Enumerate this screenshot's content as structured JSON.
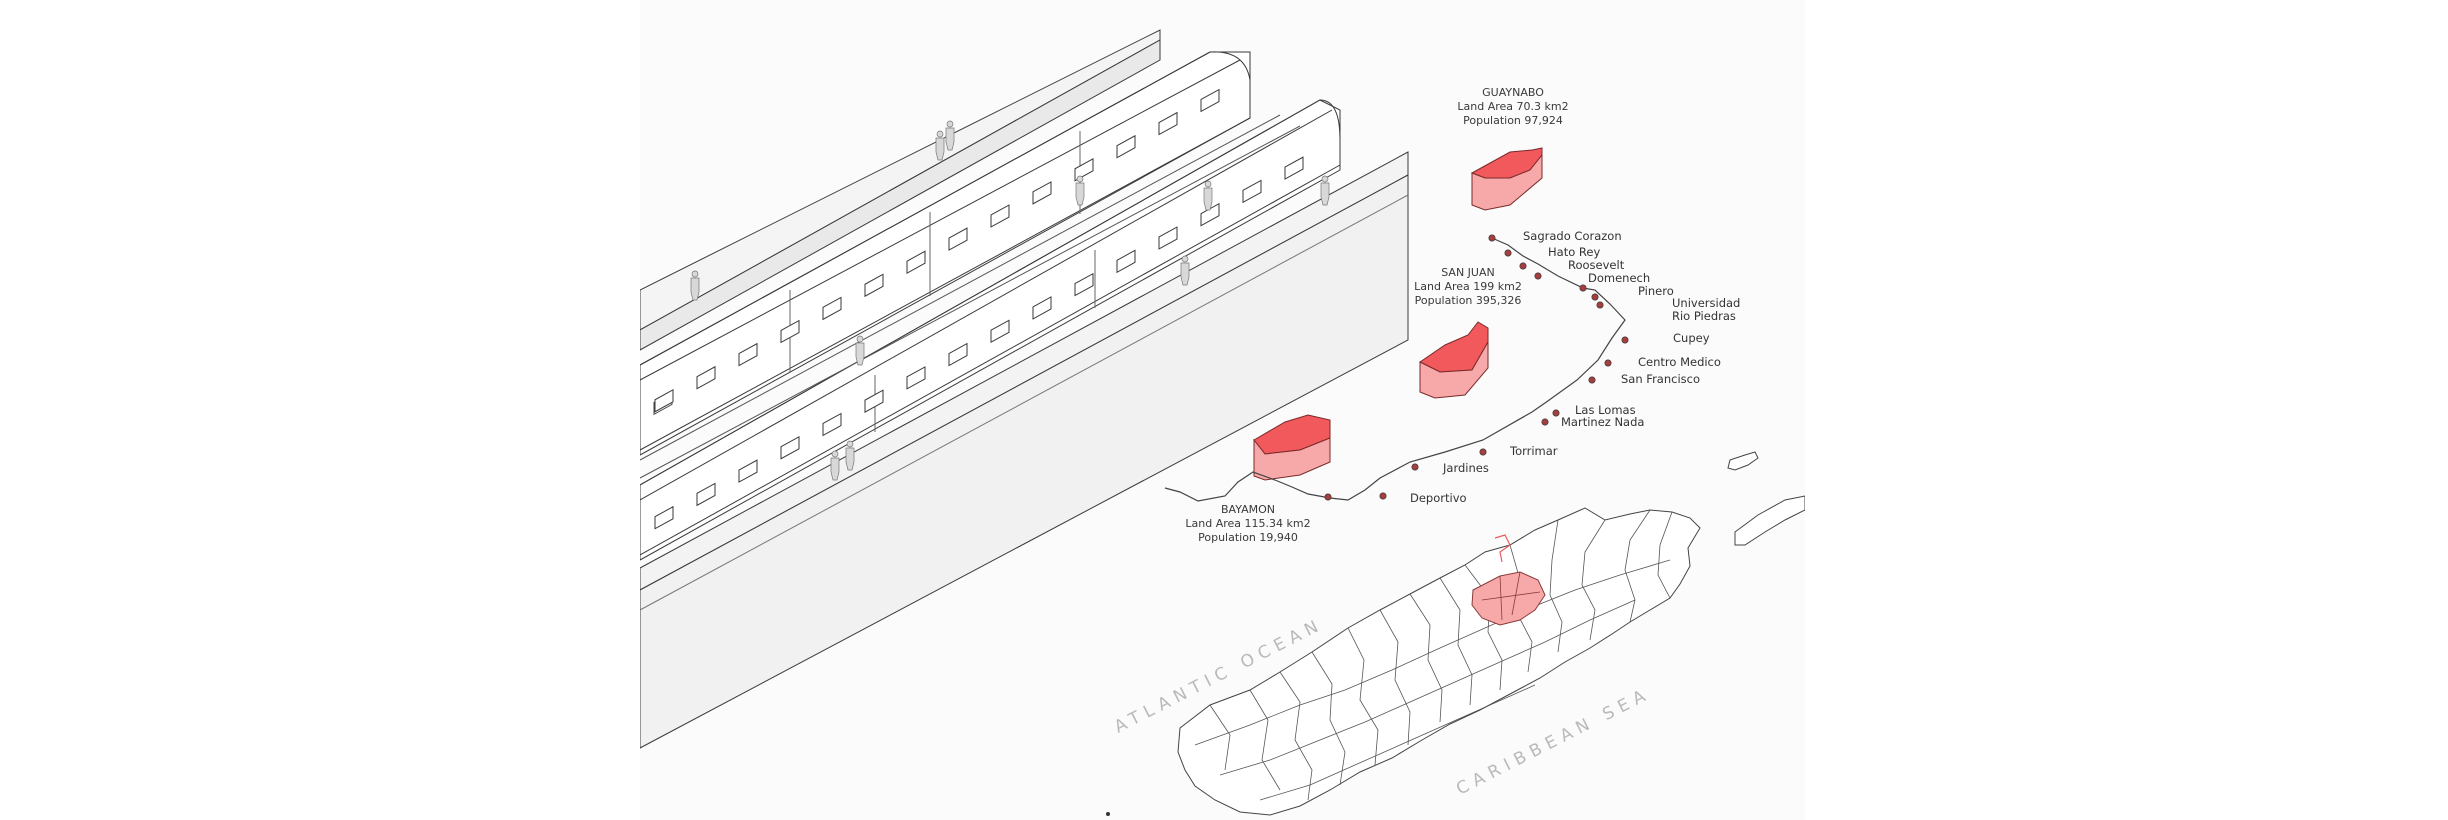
{
  "municipalities": [
    {
      "name": "GUAYNABO",
      "land_area": "Land Area 70.3 km2",
      "population": "Population 97,924"
    },
    {
      "name": "SAN JUAN",
      "land_area": "Land Area 199 km2",
      "population": "Population 395,326"
    },
    {
      "name": "BAYAMON",
      "land_area": "Land Area 115.34 km2",
      "population": "Population 19,940"
    }
  ],
  "stations": [
    "Sagrado Corazon",
    "Hato Rey",
    "Roosevelt",
    "Domenech",
    "Pinero",
    "Universidad",
    "Rio Piedras",
    "Cupey",
    "Centro Medico",
    "San Francisco",
    "Las Lomas",
    "Martinez Nada",
    "Torrimar",
    "Jardines",
    "Deportivo"
  ],
  "seas": {
    "atlantic": "ATLANTIC OCEAN",
    "caribbean": "CARIBBEAN SEA"
  },
  "colors": {
    "highlight": "#f1595c",
    "highlight_light": "#f7a9aa",
    "line": "#444444",
    "station": "#a33f3f"
  }
}
